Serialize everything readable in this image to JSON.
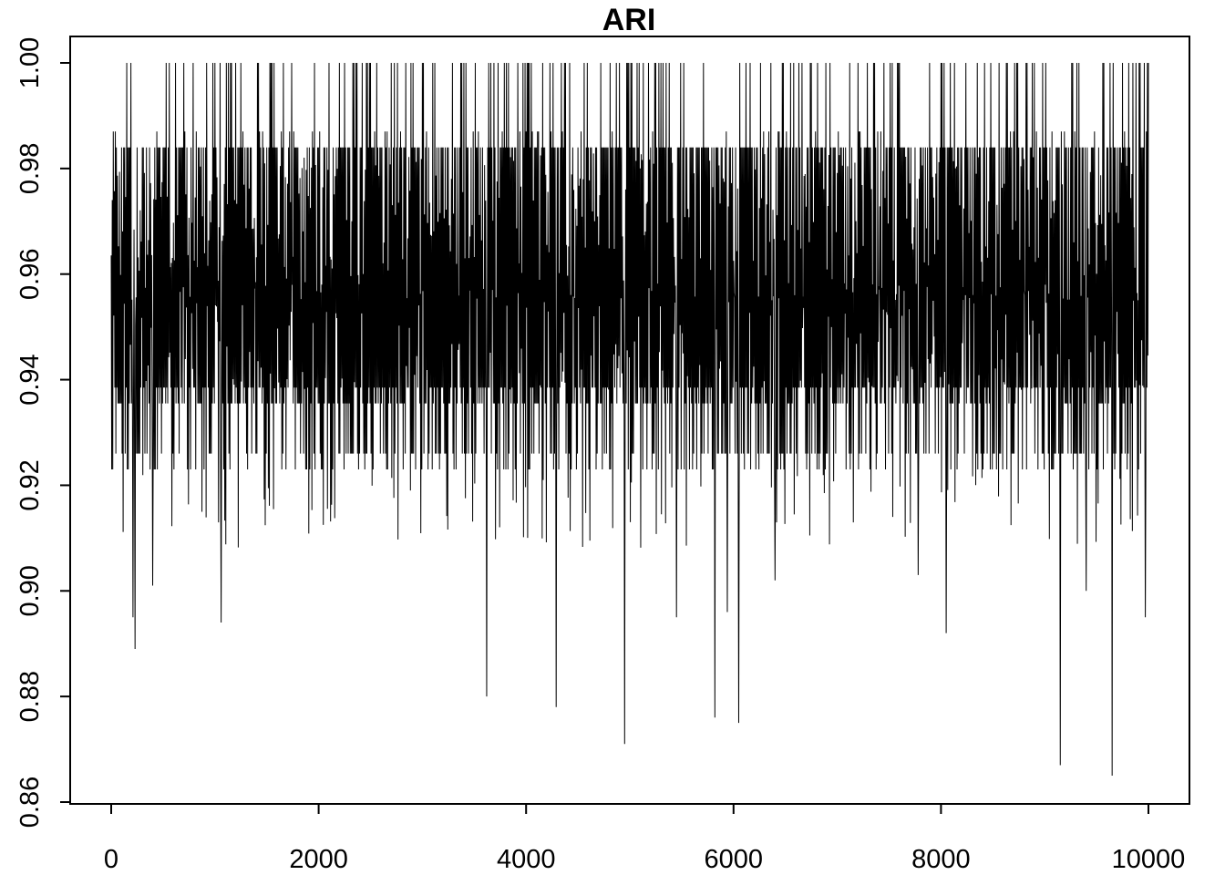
{
  "chart_data": {
    "type": "line",
    "title": "ARI",
    "xlabel": "",
    "ylabel": "",
    "xlim": [
      0,
      10000
    ],
    "ylim": [
      0.86,
      1.0
    ],
    "x_ticks": [
      0,
      2000,
      4000,
      6000,
      8000,
      10000
    ],
    "x_tick_labels": [
      "0",
      "2000",
      "4000",
      "6000",
      "8000",
      "10000"
    ],
    "y_ticks": [
      0.86,
      0.88,
      0.9,
      0.92,
      0.94,
      0.96,
      0.98,
      1.0
    ],
    "y_tick_labels": [
      "0.86",
      "0.88",
      "0.90",
      "0.92",
      "0.94",
      "0.96",
      "0.98",
      "1.00"
    ],
    "n_iterations": 10000,
    "series": [
      {
        "color": "#000000",
        "summary": {
          "typical_range": [
            0.935,
            0.984
          ],
          "upper_cap": 1.0,
          "common_upper_levels": [
            0.984,
            0.987,
            1.0
          ],
          "common_lower_levels": [
            0.9355,
            0.9385,
            0.926,
            0.923
          ],
          "min_value": 0.865
        },
        "low_spikes": [
          {
            "x": 230,
            "y": 0.889
          },
          {
            "x": 210,
            "y": 0.895
          },
          {
            "x": 400,
            "y": 0.901
          },
          {
            "x": 1060,
            "y": 0.894
          },
          {
            "x": 3620,
            "y": 0.88
          },
          {
            "x": 4290,
            "y": 0.878
          },
          {
            "x": 4950,
            "y": 0.871
          },
          {
            "x": 5450,
            "y": 0.895
          },
          {
            "x": 5820,
            "y": 0.876
          },
          {
            "x": 6050,
            "y": 0.875
          },
          {
            "x": 5940,
            "y": 0.896
          },
          {
            "x": 6400,
            "y": 0.902
          },
          {
            "x": 7780,
            "y": 0.903
          },
          {
            "x": 8050,
            "y": 0.892
          },
          {
            "x": 9150,
            "y": 0.867
          },
          {
            "x": 9400,
            "y": 0.9
          },
          {
            "x": 9650,
            "y": 0.865
          },
          {
            "x": 9970,
            "y": 0.895
          }
        ]
      }
    ]
  }
}
